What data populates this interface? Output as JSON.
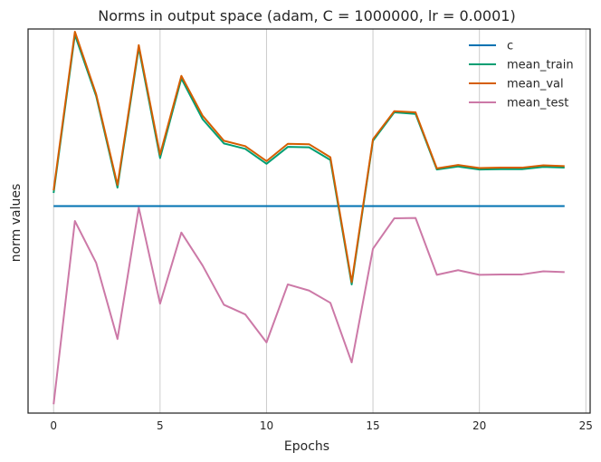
{
  "chart_data": {
    "type": "line",
    "title": "Norms in output space (adam, C = 1000000, lr = 0.0001)",
    "xlabel": "Epochs",
    "ylabel": "norm values",
    "xlim": [
      -1.2,
      25.2
    ],
    "ylim": [
      0,
      1
    ],
    "xticks": [
      0,
      5,
      10,
      15,
      20,
      25
    ],
    "yticks_shown": false,
    "grid": "vertical",
    "legend_position": "top-right",
    "x": [
      0,
      1,
      2,
      3,
      4,
      5,
      6,
      7,
      8,
      9,
      10,
      11,
      12,
      13,
      14,
      15,
      16,
      17,
      18,
      19,
      20,
      21,
      22,
      23,
      24
    ],
    "series": [
      {
        "name": "c",
        "color": "#0072b2",
        "values": [
          0.539,
          0.539,
          0.539,
          0.539,
          0.539,
          0.539,
          0.539,
          0.539,
          0.539,
          0.539,
          0.539,
          0.539,
          0.539,
          0.539,
          0.539,
          0.539,
          0.539,
          0.539,
          0.539,
          0.539,
          0.539,
          0.539,
          0.539,
          0.539,
          0.539
        ]
      },
      {
        "name": "mean_train",
        "color": "#009e73",
        "values": [
          0.573,
          0.985,
          0.825,
          0.587,
          0.951,
          0.664,
          0.871,
          0.765,
          0.702,
          0.688,
          0.649,
          0.693,
          0.692,
          0.659,
          0.335,
          0.709,
          0.783,
          0.779,
          0.634,
          0.642,
          0.634,
          0.635,
          0.635,
          0.641,
          0.639
        ]
      },
      {
        "name": "mean_val",
        "color": "#d55e00",
        "values": [
          0.58,
          0.993,
          0.83,
          0.594,
          0.958,
          0.673,
          0.878,
          0.774,
          0.709,
          0.695,
          0.656,
          0.701,
          0.7,
          0.666,
          0.341,
          0.713,
          0.786,
          0.783,
          0.637,
          0.646,
          0.638,
          0.639,
          0.639,
          0.645,
          0.643
        ]
      },
      {
        "name": "mean_test",
        "color": "#cc79a7",
        "values": [
          0.023,
          0.5,
          0.391,
          0.193,
          0.535,
          0.285,
          0.47,
          0.384,
          0.282,
          0.257,
          0.184,
          0.335,
          0.319,
          0.287,
          0.132,
          0.428,
          0.507,
          0.508,
          0.36,
          0.372,
          0.36,
          0.361,
          0.361,
          0.369,
          0.367
        ]
      }
    ]
  }
}
